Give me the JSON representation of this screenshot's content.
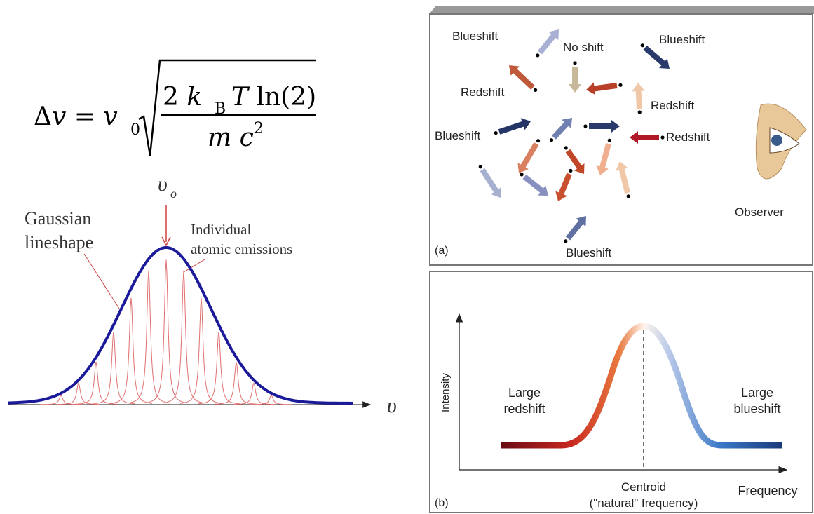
{
  "formula": {
    "lhs": "Δ𝑣 = 𝑣",
    "lhs_sub": "0",
    "numerator": "2 𝑘",
    "numerator_sub": "B",
    "numerator_rest": "𝑇 ln(2)",
    "denominator": "𝑚 𝑐",
    "denominator_sup": "2"
  },
  "lineshape": {
    "peak_label": "υ",
    "peak_label_sub": "o",
    "gaussian_label_1": "Gaussian",
    "gaussian_label_2": "lineshape",
    "individual_label_1": "Individual",
    "individual_label_2": "atomic emissions",
    "axis_label": "υ"
  },
  "panel_a": {
    "tag": "(a)",
    "labels": [
      "Blueshift",
      "No shift",
      "Blueshift",
      "Redshift",
      "Redshift",
      "Blueshift",
      "Redshift",
      "Blueshift"
    ],
    "observer": "Observer"
  },
  "panel_b": {
    "tag": "(b)",
    "y_axis": "Intensity",
    "left_label_1": "Large",
    "left_label_2": "redshift",
    "right_label_1": "Large",
    "right_label_2": "blueshift",
    "centroid_1": "Centroid",
    "centroid_2": "(\"natural\" frequency)",
    "x_axis": "Frequency"
  }
}
